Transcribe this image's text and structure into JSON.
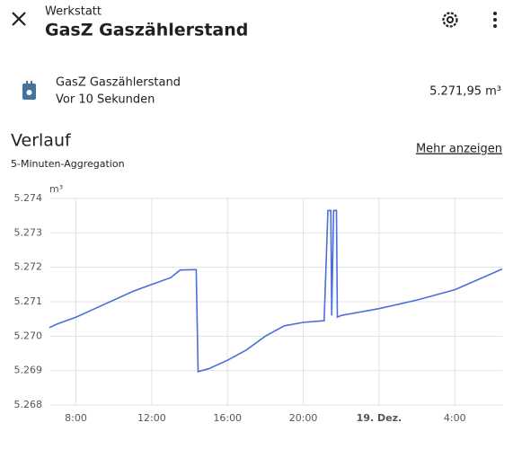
{
  "header": {
    "subtitle": "Werkstatt",
    "title": "GasZ Gaszählerstand"
  },
  "entity": {
    "name": "GasZ Gaszählerstand",
    "last_changed": "Vor 10 Sekunden",
    "state": "5.271,95 m³"
  },
  "history": {
    "title": "Verlauf",
    "subtitle": "5-Minuten-Aggregation",
    "link": "Mehr anzeigen"
  },
  "chart_data": {
    "type": "line",
    "y_label": "m³",
    "color": "#4a6fd8",
    "grid": true,
    "x": [
      6.6,
      7,
      8,
      9,
      10,
      11,
      12,
      13,
      13.5,
      14.2,
      14.35,
      14.45,
      15,
      16,
      17,
      18,
      19,
      20,
      21.1,
      21.3,
      21.45,
      21.5,
      21.6,
      21.75,
      21.8,
      22,
      24,
      26,
      28,
      30.5
    ],
    "values": [
      5270.25,
      5270.35,
      5270.55,
      5270.8,
      5271.05,
      5271.3,
      5271.5,
      5271.7,
      5271.92,
      5271.93,
      5271.93,
      5268.97,
      5269.05,
      5269.3,
      5269.6,
      5270.0,
      5270.3,
      5270.4,
      5270.45,
      5273.65,
      5273.65,
      5270.6,
      5273.65,
      5273.65,
      5270.55,
      5270.6,
      5270.8,
      5271.05,
      5271.35,
      5271.95
    ],
    "xlim": [
      6.6,
      30.5
    ],
    "xticks": [
      {
        "value": 8,
        "label": "8:00"
      },
      {
        "value": 12,
        "label": "12:00"
      },
      {
        "value": 16,
        "label": "16:00"
      },
      {
        "value": 20,
        "label": "20:00"
      },
      {
        "value": 24,
        "label": "19. Dez."
      },
      {
        "value": 28,
        "label": "4:00"
      }
    ],
    "ylim": [
      5268,
      5274
    ],
    "yticks": [
      {
        "value": 5268,
        "label": "5.268"
      },
      {
        "value": 5269,
        "label": "5.269"
      },
      {
        "value": 5270,
        "label": "5.270"
      },
      {
        "value": 5271,
        "label": "5.271"
      },
      {
        "value": 5272,
        "label": "5.272"
      },
      {
        "value": 5273,
        "label": "5.273"
      },
      {
        "value": 5274,
        "label": "5.274"
      }
    ]
  }
}
